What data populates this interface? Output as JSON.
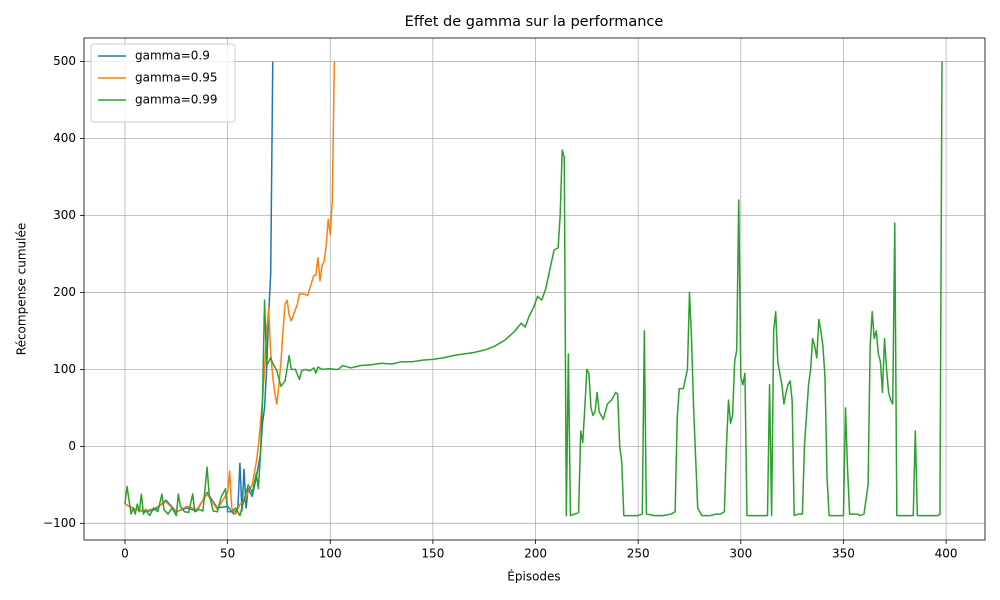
{
  "chart_data": {
    "type": "line",
    "title": "Effet de gamma sur la performance",
    "x_label": "Épisodes",
    "y_label": "Récompense cumulée",
    "xlim": [
      -19.95,
      418.95
    ],
    "ylim": [
      -121.7,
      530.6
    ],
    "xticks": [
      0,
      50,
      100,
      150,
      200,
      250,
      300,
      350,
      400
    ],
    "yticks": [
      {
        "value": -100,
        "label": "−100"
      },
      0,
      100,
      200,
      300,
      400,
      500
    ],
    "grid": true,
    "legend": "upper-left",
    "series": [
      {
        "name": "gamma=0.9",
        "color": "#1f77b4",
        "x": [
          0,
          5,
          10,
          15,
          20,
          25,
          30,
          35,
          40,
          45,
          50,
          53,
          55,
          56,
          57,
          58,
          59,
          60,
          62,
          64,
          66,
          67,
          68,
          69,
          70,
          71,
          72
        ],
        "values": [
          -75,
          -82,
          -85,
          -82,
          -70,
          -85,
          -80,
          -84,
          -60,
          -80,
          -78,
          -88,
          -80,
          -22,
          -84,
          -30,
          -80,
          -55,
          -65,
          -40,
          -10,
          30,
          50,
          100,
          170,
          225,
          500
        ]
      },
      {
        "name": "gamma=0.95",
        "color": "#ff7f0e",
        "x": [
          0,
          5,
          10,
          15,
          20,
          25,
          30,
          35,
          40,
          45,
          50,
          51,
          52,
          54,
          56,
          58,
          60,
          62,
          64,
          65,
          66,
          67,
          68,
          69,
          70,
          71,
          72,
          73,
          74,
          75,
          76,
          77,
          78,
          79,
          80,
          81,
          82,
          84,
          85,
          87,
          89,
          90,
          92,
          93,
          94,
          95,
          96,
          97,
          98,
          99,
          100,
          101,
          102
        ],
        "values": [
          -75,
          -82,
          -84,
          -80,
          -72,
          -86,
          -78,
          -82,
          -62,
          -82,
          -60,
          -32,
          -80,
          -88,
          -75,
          -72,
          -60,
          -50,
          -20,
          0,
          30,
          60,
          100,
          150,
          180,
          120,
          90,
          70,
          55,
          80,
          110,
          150,
          185,
          190,
          170,
          163,
          170,
          185,
          198,
          198,
          196,
          205,
          222,
          222,
          245,
          215,
          235,
          240,
          260,
          295,
          275,
          320,
          500
        ]
      },
      {
        "name": "gamma=0.99",
        "color": "#2ca02c",
        "x": [
          0,
          1,
          2,
          3,
          4,
          5,
          6,
          7,
          8,
          9,
          10,
          12,
          14,
          16,
          18,
          19,
          21,
          23,
          25,
          26,
          27,
          29,
          31,
          33,
          34,
          36,
          38,
          40,
          41,
          43,
          45,
          47,
          49,
          50,
          52,
          54,
          56,
          58,
          60,
          62,
          64,
          65,
          66,
          67,
          68,
          69,
          70,
          71,
          72,
          74,
          76,
          78,
          80,
          81,
          83,
          85,
          86,
          88,
          90,
          92,
          93,
          94,
          96,
          100,
          102,
          104,
          106,
          110,
          115,
          120,
          125,
          130,
          135,
          140,
          145,
          150,
          155,
          160,
          165,
          170,
          175,
          180,
          185,
          188,
          190,
          193,
          195,
          197,
          199,
          201,
          203,
          205,
          207,
          209,
          211,
          212,
          213,
          214,
          215,
          216,
          217,
          219,
          221,
          222,
          223,
          224,
          225,
          226,
          227,
          228,
          229,
          230,
          231,
          233,
          235,
          237,
          239,
          240,
          241,
          242,
          243,
          246,
          250,
          252,
          253,
          254,
          258,
          262,
          266,
          268,
          269,
          270,
          272,
          274,
          275,
          276,
          277,
          279,
          281,
          285,
          288,
          290,
          292,
          293,
          294,
          295,
          296,
          297,
          298,
          299,
          300,
          301,
          302,
          303,
          306,
          310,
          313,
          314,
          315,
          316,
          317,
          318,
          319,
          320,
          321,
          322,
          323,
          324,
          325,
          326,
          328,
          330,
          331,
          332,
          333,
          334,
          335,
          336,
          337,
          338,
          339,
          340,
          341,
          342,
          343,
          346,
          350,
          351,
          352,
          353,
          355,
          357,
          358,
          360,
          362,
          363,
          364,
          365,
          366,
          367,
          368,
          369,
          370,
          371,
          372,
          373,
          374,
          375,
          376,
          380,
          384,
          385,
          386,
          390,
          394,
          396,
          397,
          398
        ],
        "values": [
          -75,
          -52,
          -70,
          -88,
          -80,
          -88,
          -75,
          -85,
          -62,
          -88,
          -82,
          -90,
          -80,
          -85,
          -62,
          -82,
          -88,
          -80,
          -90,
          -62,
          -78,
          -85,
          -86,
          -62,
          -85,
          -82,
          -84,
          -27,
          -62,
          -84,
          -85,
          -65,
          -55,
          -85,
          -85,
          -80,
          -90,
          -70,
          -50,
          -60,
          -35,
          -55,
          -10,
          60,
          190,
          105,
          110,
          115,
          108,
          98,
          78,
          85,
          118,
          100,
          100,
          87,
          98,
          100,
          98,
          102,
          95,
          103,
          100,
          101,
          100,
          100,
          105,
          102,
          105,
          106,
          108,
          107,
          110,
          110,
          112,
          113,
          115,
          118,
          120,
          122,
          125,
          130,
          138,
          145,
          150,
          160,
          155,
          170,
          180,
          195,
          190,
          205,
          230,
          255,
          258,
          300,
          385,
          375,
          -90,
          120,
          -90,
          -88,
          -86,
          20,
          5,
          50,
          100,
          95,
          50,
          40,
          45,
          70,
          45,
          35,
          55,
          60,
          70,
          68,
          0,
          -20,
          -90,
          -90,
          -90,
          -88,
          150,
          -88,
          -90,
          -90,
          -88,
          -85,
          35,
          75,
          75,
          100,
          200,
          140,
          50,
          -80,
          -90,
          -90,
          -88,
          -88,
          -85,
          0,
          60,
          30,
          40,
          110,
          125,
          320,
          90,
          80,
          95,
          -90,
          -90,
          -90,
          -90,
          80,
          -90,
          150,
          175,
          110,
          95,
          80,
          55,
          70,
          80,
          85,
          60,
          -90,
          -88,
          -88,
          0,
          40,
          80,
          100,
          140,
          130,
          115,
          165,
          150,
          130,
          90,
          -40,
          -90,
          -90,
          -90,
          50,
          -30,
          -88,
          -88,
          -88,
          -90,
          -88,
          -50,
          130,
          175,
          140,
          150,
          120,
          110,
          70,
          140,
          100,
          70,
          60,
          55,
          290,
          -90,
          -90,
          -90,
          20,
          -90,
          -90,
          -90,
          -90,
          -88,
          500
        ]
      }
    ]
  }
}
